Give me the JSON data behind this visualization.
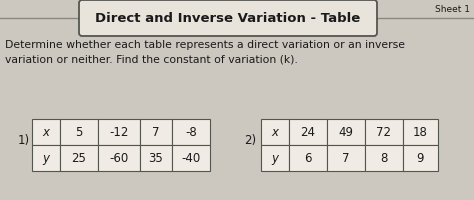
{
  "title": "Direct and Inverse Variation - Table",
  "sheet_label": "Sheet 1",
  "instruction": "Determine whether each table represents a direct variation or an inverse\nvariation or neither. Find the constant of variation (k).",
  "table1_label": "1)",
  "table1_row1": [
    "x",
    "5",
    "-12",
    "7",
    "-8"
  ],
  "table1_row2": [
    "y",
    "25",
    "-60",
    "35",
    "-40"
  ],
  "table2_label": "2)",
  "table2_row1": [
    "x",
    "24",
    "49",
    "72",
    "18"
  ],
  "table2_row2": [
    "y",
    "6",
    "7",
    "8",
    "9"
  ],
  "bg_color": "#cdc8bf",
  "table_bg": "#f0ece5",
  "title_bg": "#e8e3db",
  "text_color": "#1a1a1a",
  "line_color": "#888880",
  "border_color": "#555550"
}
